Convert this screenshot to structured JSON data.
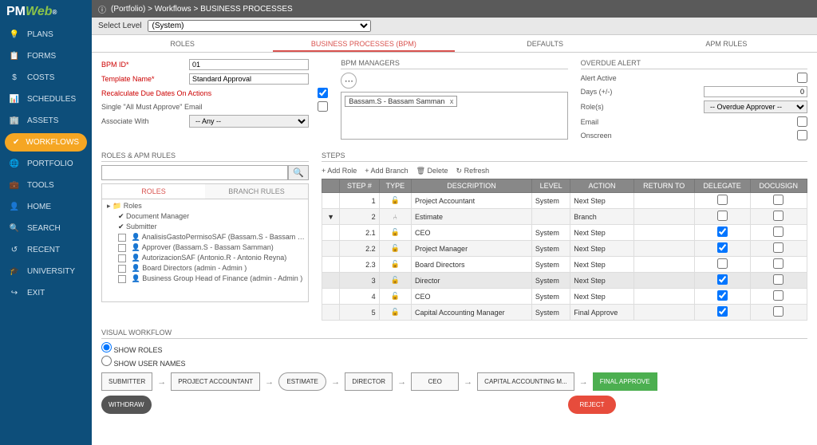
{
  "logo": {
    "brand": "PM",
    "brand2": "Web"
  },
  "breadcrumb": "(Portfolio) > Workflows > BUSINESS PROCESSES",
  "selectLevel": {
    "label": "Select Level",
    "value": "(System)"
  },
  "mainTabs": [
    "ROLES",
    "BUSINESS PROCESSES (BPM)",
    "DEFAULTS",
    "APM RULES"
  ],
  "mainTabActive": 1,
  "sidebar": [
    {
      "icon": "💡",
      "label": "PLANS"
    },
    {
      "icon": "📋",
      "label": "FORMS"
    },
    {
      "icon": "$",
      "label": "COSTS"
    },
    {
      "icon": "📊",
      "label": "SCHEDULES"
    },
    {
      "icon": "🏢",
      "label": "ASSETS"
    },
    {
      "icon": "✔",
      "label": "WORKFLOWS",
      "active": true
    },
    {
      "icon": "🌐",
      "label": "PORTFOLIO"
    },
    {
      "icon": "💼",
      "label": "TOOLS"
    },
    {
      "icon": "👤",
      "label": "HOME"
    },
    {
      "icon": "🔍",
      "label": "SEARCH"
    },
    {
      "icon": "↺",
      "label": "RECENT"
    },
    {
      "icon": "🎓",
      "label": "UNIVERSITY"
    },
    {
      "icon": "↪",
      "label": "EXIT"
    }
  ],
  "form": {
    "bpmId": {
      "label": "BPM ID*",
      "value": "01"
    },
    "templateName": {
      "label": "Template Name*",
      "value": "Standard Approval"
    },
    "recalc": {
      "label": "Recalculate Due Dates On Actions",
      "checked": true
    },
    "singleAll": {
      "label": "Single \"All Must Approve\" Email",
      "checked": false
    },
    "associate": {
      "label": "Associate With",
      "value": "-- Any --"
    }
  },
  "managers": {
    "label": "BPM MANAGERS",
    "chip": "Bassam.S - Bassam Samman",
    "x": "x"
  },
  "overdue": {
    "label": "OVERDUE ALERT",
    "alertActive": {
      "label": "Alert Active"
    },
    "days": {
      "label": "Days (+/-)",
      "value": "0"
    },
    "roles": {
      "label": "Role(s)",
      "value": "-- Overdue Approver --"
    },
    "email": {
      "label": "Email"
    },
    "onscreen": {
      "label": "Onscreen"
    }
  },
  "rolesPanel": {
    "label": "ROLES & APM RULES",
    "subTabs": [
      "ROLES",
      "BRANCH RULES"
    ],
    "subTabActive": 0,
    "tree": [
      {
        "root": true,
        "label": "Roles"
      },
      {
        "checked": true,
        "label": "Document Manager"
      },
      {
        "checked": true,
        "label": "Submitter"
      },
      {
        "label": "AnalisisGastoPermisoSAF (Bassam.S - Bassam Sam"
      },
      {
        "label": "Approver (Bassam.S - Bassam Samman)"
      },
      {
        "label": "AutorizacionSAF (Antonio.R - Antonio Reyna)"
      },
      {
        "label": "Board Directors (admin - Admin )"
      },
      {
        "label": "Business Group Head of Finance (admin - Admin )"
      }
    ]
  },
  "steps": {
    "label": "STEPS",
    "toolbar": [
      "+ Add Role",
      "+ Add Branch",
      "🗑 Delete",
      "↻ Refresh"
    ],
    "headers": [
      "",
      "STEP #",
      "TYPE",
      "DESCRIPTION",
      "LEVEL",
      "ACTION",
      "RETURN TO",
      "DELEGATE",
      "DOCUSIGN"
    ],
    "rows": [
      {
        "exp": "",
        "step": "1",
        "type": "🔓",
        "desc": "Project Accountant",
        "level": "System",
        "action": "Next Step",
        "ret": "",
        "del": false,
        "doc": false
      },
      {
        "exp": "▼",
        "step": "2",
        "type": "⑃",
        "desc": "Estimate",
        "level": "",
        "action": "Branch",
        "ret": "",
        "del": false,
        "doc": false,
        "alt": true
      },
      {
        "exp": "",
        "step": "2.1",
        "type": "🔓",
        "desc": "CEO",
        "level": "System",
        "action": "Next Step",
        "ret": "",
        "del": true,
        "doc": false
      },
      {
        "exp": "",
        "step": "2.2",
        "type": "🔓",
        "desc": "Project Manager",
        "level": "System",
        "action": "Next Step",
        "ret": "",
        "del": true,
        "doc": false,
        "alt": true
      },
      {
        "exp": "",
        "step": "2.3",
        "type": "🔓",
        "desc": "Board Directors",
        "level": "System",
        "action": "Next Step",
        "ret": "",
        "del": false,
        "doc": false
      },
      {
        "exp": "",
        "step": "3",
        "type": "🔓",
        "desc": "Director",
        "level": "System",
        "action": "Next Step",
        "ret": "",
        "del": true,
        "doc": false,
        "hl": true
      },
      {
        "exp": "",
        "step": "4",
        "type": "🔓",
        "desc": "CEO",
        "level": "System",
        "action": "Next Step",
        "ret": "",
        "del": true,
        "doc": false
      },
      {
        "exp": "",
        "step": "5",
        "type": "🔓",
        "desc": "Capital Accounting Manager",
        "level": "System",
        "action": "Final Approve",
        "ret": "",
        "del": true,
        "doc": false,
        "alt": true
      }
    ]
  },
  "visualWorkflow": {
    "label": "VISUAL WORKFLOW",
    "opt1": "SHOW ROLES",
    "opt2": "SHOW USER NAMES",
    "nodes": [
      "SUBMITTER",
      "PROJECT ACCOUNTANT",
      "ESTIMATE",
      "DIRECTOR",
      "CEO",
      "CAPITAL ACCOUNTING M...",
      "FINAL APPROVE"
    ],
    "withdraw": "WITHDRAW",
    "reject": "REJECT"
  }
}
